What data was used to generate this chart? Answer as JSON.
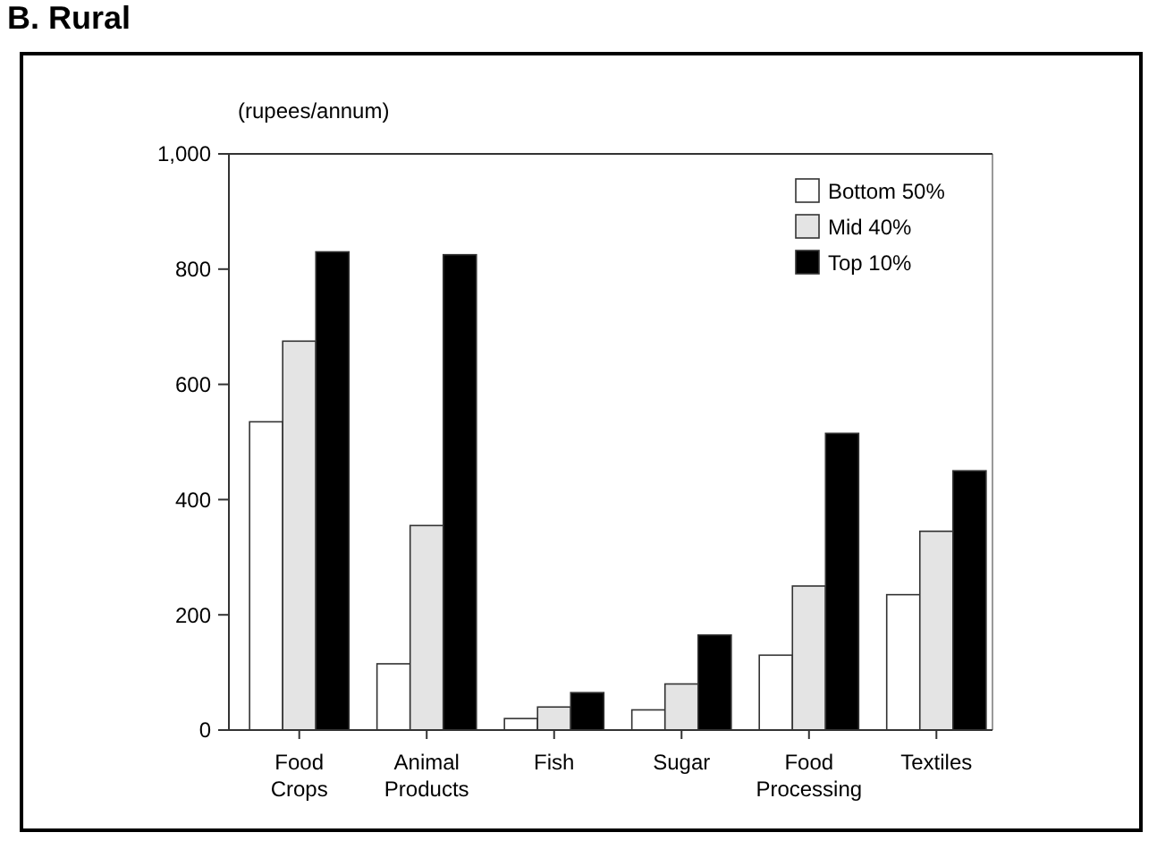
{
  "chart_data": {
    "type": "bar",
    "title": "B. Rural",
    "ylabel": "(rupees/annum)",
    "categories": [
      "Food Crops",
      "Animal Products",
      "Fish",
      "Sugar",
      "Food Processing",
      "Textiles"
    ],
    "series": [
      {
        "name": "Bottom 50%",
        "color": "#ffffff",
        "values": [
          535,
          115,
          20,
          35,
          130,
          235
        ]
      },
      {
        "name": "Mid 40%",
        "color": "#e4e4e4",
        "values": [
          675,
          355,
          40,
          80,
          250,
          345
        ]
      },
      {
        "name": "Top 10%",
        "color": "#000000",
        "values": [
          830,
          825,
          65,
          165,
          515,
          450
        ]
      }
    ],
    "ylim": [
      0,
      1000
    ],
    "yticks": [
      0,
      200,
      400,
      600,
      800,
      {
        "value": 1000,
        "label": "1,000"
      }
    ],
    "grid": false,
    "legend": "top right"
  }
}
